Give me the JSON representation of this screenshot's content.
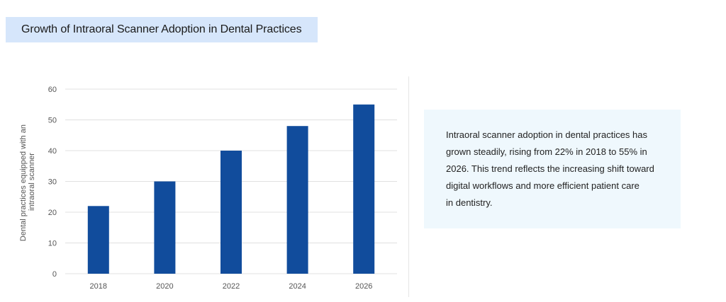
{
  "header": {
    "title": "Growth of Intraoral Scanner Adoption in Dental Practices"
  },
  "note": {
    "lines": [
      "Intraoral scanner adoption in dental practices has",
      "grown steadily, rising from 22% in 2018 to 55% in",
      "2026. This trend reflects the increasing shift toward",
      "digital workflows and more efficient patient care",
      "in dentistry."
    ]
  },
  "chart_data": {
    "type": "bar",
    "title": "Growth of Intraoral Scanner Adoption in Dental Practices",
    "categories": [
      "2018",
      "2020",
      "2022",
      "2024",
      "2026"
    ],
    "values": [
      22,
      30,
      40,
      48,
      55
    ],
    "xlabel": "",
    "ylabel_lines": [
      "Dental practices equipped with an",
      "intraoral scanner"
    ],
    "ylim": [
      0,
      60
    ],
    "yticks": [
      0,
      10,
      20,
      30,
      40,
      50,
      60
    ],
    "grid": true,
    "bar_color": "#114c9c",
    "grid_color": "#e0e0e0"
  }
}
